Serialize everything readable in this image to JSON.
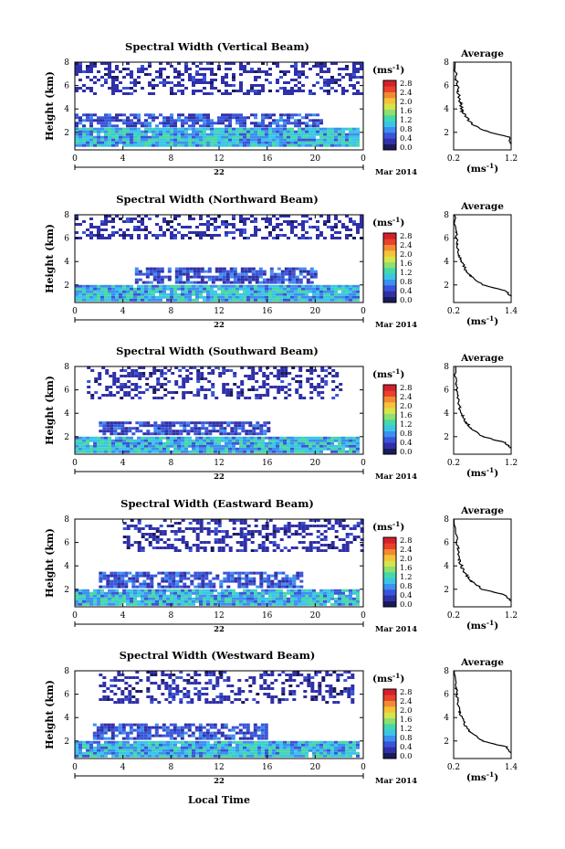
{
  "figure": {
    "date_label": "Mar 2014",
    "x_axis_title": "Local Time",
    "day_label": "22",
    "unit_label": "(ms",
    "unit_exp": "-1",
    "unit_close": ")",
    "avg_title": "Average",
    "colorbar_ticks": [
      "0.0",
      "0.4",
      "0.8",
      "1.2",
      "1.6",
      "2.0",
      "2.4",
      "2.8"
    ],
    "colors": [
      "#1a1a5c",
      "#3030a8",
      "#3a55d8",
      "#3d8ff0",
      "#39c6e6",
      "#46d8a8",
      "#8ee070",
      "#d8e44a",
      "#f5c23a",
      "#f28a32",
      "#e8412c",
      "#d4202a"
    ]
  },
  "chart_data": [
    {
      "type": "heatmap",
      "title": "Spectral Width (Vertical Beam)",
      "ylabel": "Height (km)",
      "xlabel": "Local Time",
      "xlim": [
        0,
        24
      ],
      "ylim": [
        0.5,
        8
      ],
      "xticks": [
        "0",
        "4",
        "8",
        "12",
        "16",
        "20",
        "0"
      ],
      "yticks": [
        "2",
        "4",
        "6",
        "8"
      ],
      "colorbar": {
        "unit": "ms-1",
        "range": [
          0,
          2.8
        ]
      },
      "layers": [
        {
          "ymin": 0.8,
          "ymax": 2.4,
          "xmin": 0,
          "xmax": 23.5,
          "values_ms1": [
            0.6,
            1.4
          ]
        },
        {
          "ymin": 2.5,
          "ymax": 3.6,
          "xmin": 0,
          "xmax": 20.5,
          "values_ms1": [
            0.3,
            0.8
          ]
        },
        {
          "ymin": 5.2,
          "ymax": 8.0,
          "xmin": 0,
          "xmax": 24,
          "values_ms1": [
            0.2,
            0.5
          ]
        }
      ],
      "profile": {
        "xlim": [
          0.2,
          1.2
        ],
        "xticks": [
          "0.2",
          "1.2"
        ],
        "yticks": [
          "2",
          "4",
          "6",
          "8"
        ],
        "x": [
          1.2,
          1.15,
          0.7,
          0.5,
          0.42,
          0.35,
          0.32,
          0.28,
          0.25,
          0.22
        ],
        "y": [
          1.0,
          1.6,
          2.2,
          2.8,
          3.3,
          3.8,
          4.5,
          5.5,
          6.5,
          8.0
        ]
      }
    },
    {
      "type": "heatmap",
      "title": "Spectral Width (Northward Beam)",
      "ylabel": "Height (km)",
      "xlabel": "Local Time",
      "xlim": [
        0,
        24
      ],
      "ylim": [
        0.5,
        8
      ],
      "xticks": [
        "0",
        "4",
        "8",
        "12",
        "16",
        "20",
        "0"
      ],
      "yticks": [
        "2",
        "4",
        "6",
        "8"
      ],
      "colorbar": {
        "unit": "ms-1",
        "range": [
          0,
          2.8
        ]
      },
      "layers": [
        {
          "ymin": 0.8,
          "ymax": 2.0,
          "xmin": 0,
          "xmax": 23.5,
          "values_ms1": [
            0.6,
            1.4
          ]
        },
        {
          "ymin": 2.2,
          "ymax": 3.5,
          "xmin": 5,
          "xmax": 20,
          "values_ms1": [
            0.3,
            0.8
          ]
        },
        {
          "ymin": 6.0,
          "ymax": 8.0,
          "xmin": 0,
          "xmax": 24,
          "values_ms1": [
            0.2,
            0.5
          ]
        }
      ],
      "profile": {
        "xlim": [
          0.2,
          1.4
        ],
        "xticks": [
          "0.2",
          "1.4"
        ],
        "yticks": [
          "2",
          "4",
          "6",
          "8"
        ],
        "x": [
          1.4,
          1.3,
          0.8,
          0.55,
          0.45,
          0.38,
          0.32,
          0.28,
          0.25,
          0.22
        ],
        "y": [
          1.0,
          1.5,
          2.0,
          2.8,
          3.3,
          3.9,
          4.5,
          5.5,
          6.5,
          8.0
        ]
      }
    },
    {
      "type": "heatmap",
      "title": "Spectral Width (Southward Beam)",
      "ylabel": "Height (km)",
      "xlabel": "Local Time",
      "xlim": [
        0,
        24
      ],
      "ylim": [
        0.5,
        8
      ],
      "xticks": [
        "0",
        "4",
        "8",
        "12",
        "16",
        "20",
        "0"
      ],
      "yticks": [
        "2",
        "4",
        "6",
        "8"
      ],
      "colorbar": {
        "unit": "ms-1",
        "range": [
          0,
          2.8
        ]
      },
      "layers": [
        {
          "ymin": 0.8,
          "ymax": 2.0,
          "xmin": 0,
          "xmax": 23.5,
          "values_ms1": [
            0.6,
            1.4
          ]
        },
        {
          "ymin": 2.3,
          "ymax": 3.3,
          "xmin": 2,
          "xmax": 16,
          "values_ms1": [
            0.3,
            0.8
          ]
        },
        {
          "ymin": 5.2,
          "ymax": 8.0,
          "xmin": 1,
          "xmax": 22,
          "values_ms1": [
            0.2,
            0.5
          ]
        }
      ],
      "profile": {
        "xlim": [
          0.2,
          1.2
        ],
        "xticks": [
          "0.2",
          "1.2"
        ],
        "yticks": [
          "2",
          "4",
          "6",
          "8"
        ],
        "x": [
          1.2,
          1.1,
          0.7,
          0.5,
          0.42,
          0.35,
          0.3,
          0.27,
          0.24,
          0.22
        ],
        "y": [
          1.0,
          1.5,
          2.0,
          2.7,
          3.2,
          3.8,
          4.5,
          5.5,
          6.5,
          8.0
        ]
      }
    },
    {
      "type": "heatmap",
      "title": "Spectral Width (Eastward Beam)",
      "ylabel": "Height (km)",
      "xlabel": "Local Time",
      "xlim": [
        0,
        24
      ],
      "ylim": [
        0.5,
        8
      ],
      "xticks": [
        "0",
        "4",
        "8",
        "12",
        "16",
        "20",
        "0"
      ],
      "yticks": [
        "2",
        "4",
        "6",
        "8"
      ],
      "colorbar": {
        "unit": "ms-1",
        "range": [
          0,
          2.8
        ]
      },
      "layers": [
        {
          "ymin": 0.8,
          "ymax": 2.0,
          "xmin": 0,
          "xmax": 23.5,
          "values_ms1": [
            0.6,
            1.4
          ]
        },
        {
          "ymin": 2.2,
          "ymax": 3.5,
          "xmin": 2,
          "xmax": 19,
          "values_ms1": [
            0.3,
            0.8
          ]
        },
        {
          "ymin": 5.2,
          "ymax": 8.0,
          "xmin": 4,
          "xmax": 24,
          "values_ms1": [
            0.2,
            0.5
          ]
        }
      ],
      "profile": {
        "xlim": [
          0.2,
          1.2
        ],
        "xticks": [
          "0.2",
          "1.2"
        ],
        "yticks": [
          "2",
          "4",
          "6",
          "8"
        ],
        "x": [
          1.2,
          1.1,
          0.7,
          0.5,
          0.42,
          0.35,
          0.3,
          0.27,
          0.24,
          0.22
        ],
        "y": [
          1.0,
          1.5,
          2.0,
          2.7,
          3.2,
          3.8,
          4.5,
          5.5,
          6.5,
          8.0
        ]
      }
    },
    {
      "type": "heatmap",
      "title": "Spectral Width (Westward Beam)",
      "ylabel": "Height (km)",
      "xlabel": "Local Time",
      "xlim": [
        0,
        24
      ],
      "ylim": [
        0.5,
        8
      ],
      "xticks": [
        "0",
        "4",
        "8",
        "12",
        "16",
        "20",
        "0"
      ],
      "yticks": [
        "2",
        "4",
        "6",
        "8"
      ],
      "colorbar": {
        "unit": "ms-1",
        "range": [
          0,
          2.8
        ]
      },
      "layers": [
        {
          "ymin": 0.8,
          "ymax": 2.0,
          "xmin": 0,
          "xmax": 23.5,
          "values_ms1": [
            0.6,
            1.4
          ]
        },
        {
          "ymin": 2.2,
          "ymax": 3.5,
          "xmin": 1.5,
          "xmax": 16,
          "values_ms1": [
            0.3,
            0.8
          ]
        },
        {
          "ymin": 5.2,
          "ymax": 8.0,
          "xmin": 2,
          "xmax": 23,
          "values_ms1": [
            0.2,
            0.5
          ]
        }
      ],
      "profile": {
        "xlim": [
          0.2,
          1.4
        ],
        "xticks": [
          "0.2",
          "1.4"
        ],
        "yticks": [
          "2",
          "4",
          "6",
          "8"
        ],
        "x": [
          1.4,
          1.3,
          0.8,
          0.55,
          0.45,
          0.38,
          0.32,
          0.28,
          0.25,
          0.22
        ],
        "y": [
          1.0,
          1.5,
          2.0,
          2.8,
          3.3,
          3.9,
          4.5,
          5.5,
          6.5,
          8.0
        ]
      }
    }
  ]
}
